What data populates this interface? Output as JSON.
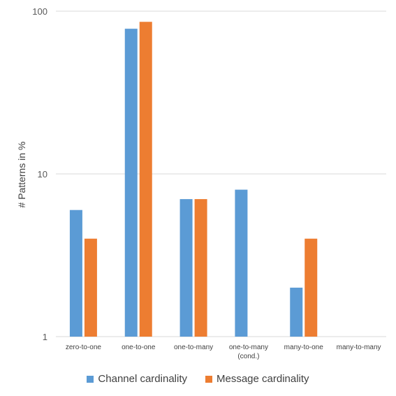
{
  "chart_data": {
    "type": "bar",
    "title": "",
    "xlabel": "",
    "ylabel": "# Patterns in %",
    "y_scale": "log",
    "ylim": [
      1,
      100
    ],
    "y_ticks": [
      "1",
      "10",
      "100"
    ],
    "grid": true,
    "legend_position": "bottom",
    "categories": [
      [
        "zero-to-one"
      ],
      [
        "one-to-one"
      ],
      [
        "one-to-many"
      ],
      [
        "one-to-many",
        "(cond.)"
      ],
      [
        "many-to-one"
      ],
      [
        "many-to-many"
      ]
    ],
    "series": [
      {
        "name": "Channel cardinality",
        "color": "#5B9BD5",
        "values": [
          6,
          78,
          7,
          8,
          2,
          null
        ]
      },
      {
        "name": "Message cardinality",
        "color": "#ED7D31",
        "values": [
          4,
          86,
          7,
          1,
          4,
          null
        ]
      }
    ]
  }
}
